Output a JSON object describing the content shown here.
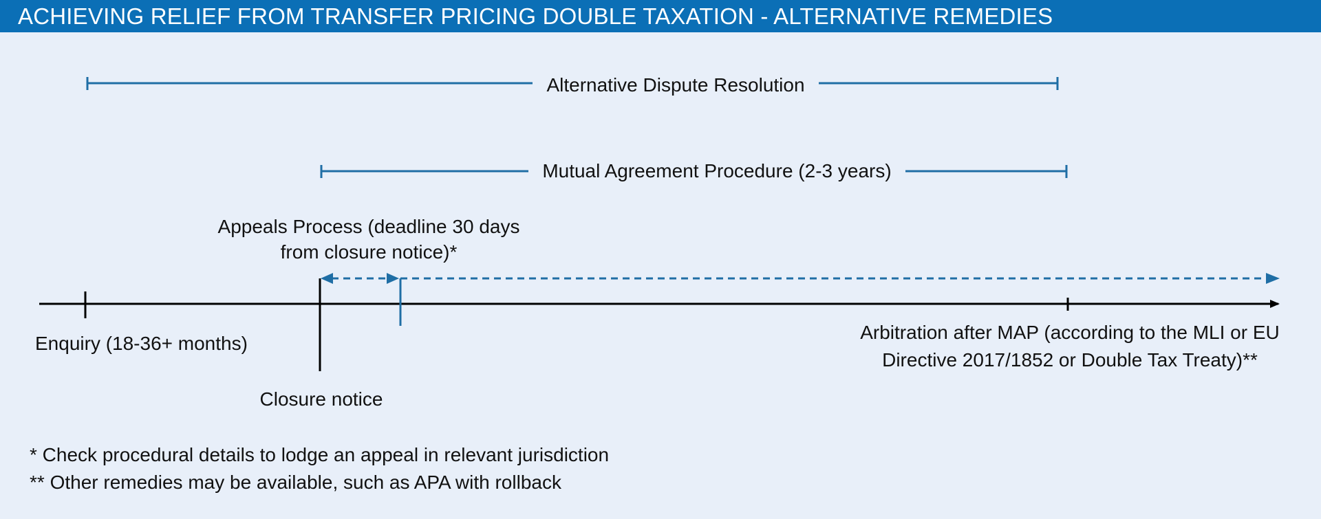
{
  "header": {
    "title": "ACHIEVING RELIEF FROM TRANSFER PRICING DOUBLE TAXATION - ALTERNATIVE REMEDIES"
  },
  "colors": {
    "header_bg": "#0b6fb6",
    "background": "#e8eff9",
    "accent": "#1f6ea5",
    "timeline": "#000000"
  },
  "ranges": {
    "adr": "Alternative Dispute Resolution",
    "map": "Mutual Agreement Procedure (2-3 years)"
  },
  "timeline": {
    "appeals_line1": "Appeals Process (deadline 30 days",
    "appeals_line2": "from closure notice)*",
    "enquiry": "Enquiry (18-36+ months)",
    "closure": "Closure notice",
    "arbitration_line1": "Arbitration after MAP (according to the MLI or EU",
    "arbitration_line2": "Directive 2017/1852 or Double Tax Treaty)**"
  },
  "footnotes": {
    "note1": "* Check procedural details to lodge an appeal in relevant jurisdiction",
    "note2": "** Other remedies may be available, such as APA with rollback"
  }
}
